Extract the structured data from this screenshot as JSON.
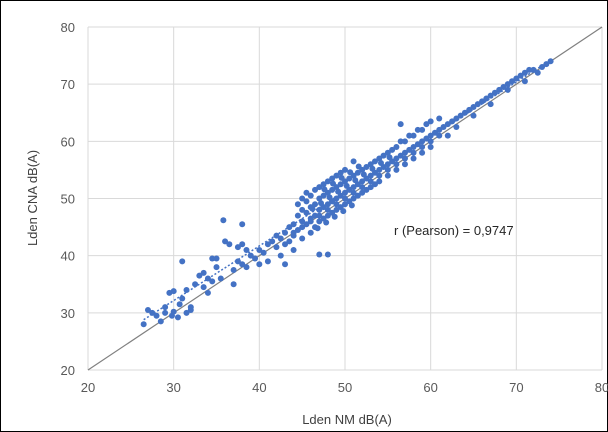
{
  "chart_data": {
    "type": "scatter",
    "xlabel": "Lden NM dB(A)",
    "ylabel": "Lden CNA dB(A)",
    "xlim": [
      20,
      80
    ],
    "ylim": [
      20,
      80
    ],
    "x_ticks": [
      "20",
      "30",
      "40",
      "50",
      "60",
      "70",
      "80"
    ],
    "y_ticks": [
      "20",
      "30",
      "40",
      "50",
      "60",
      "70",
      "80"
    ],
    "grid": true,
    "legend": "none",
    "annotation": "r (Pearson) = 0,9747",
    "identity_line": {
      "from": [
        20,
        20
      ],
      "to": [
        80,
        80
      ],
      "color": "#808080"
    },
    "trend_line": {
      "from": [
        26.5,
        28.8
      ],
      "to": [
        74,
        74.2
      ],
      "style": "dotted",
      "color": "#4472C4"
    },
    "point_color": "#4472C4",
    "series": [
      {
        "points": [
          [
            26.5,
            28
          ],
          [
            27.0,
            30.5
          ],
          [
            27.5,
            30
          ],
          [
            28,
            29.5
          ],
          [
            28.5,
            28.5
          ],
          [
            29,
            30
          ],
          [
            29,
            31
          ],
          [
            29.5,
            33.5
          ],
          [
            29.8,
            29.5
          ],
          [
            30,
            30.2
          ],
          [
            30,
            33.8
          ],
          [
            30.5,
            29.2
          ],
          [
            30.7,
            31.5
          ],
          [
            31,
            32.5
          ],
          [
            31,
            39
          ],
          [
            31.5,
            30
          ],
          [
            31.5,
            34
          ],
          [
            32,
            31
          ],
          [
            32,
            30.5
          ],
          [
            32.5,
            35
          ],
          [
            33,
            36.5
          ],
          [
            33.5,
            34.5
          ],
          [
            33.5,
            37
          ],
          [
            34,
            36
          ],
          [
            34,
            33.5
          ],
          [
            34.5,
            35.5
          ],
          [
            34.5,
            39.5
          ],
          [
            35,
            38
          ],
          [
            35,
            39.5
          ],
          [
            35.5,
            36
          ],
          [
            35.8,
            46.2
          ],
          [
            36,
            42.5
          ],
          [
            36.5,
            42
          ],
          [
            37,
            37.5
          ],
          [
            37,
            35
          ],
          [
            37.5,
            41.5
          ],
          [
            37.5,
            39
          ],
          [
            38,
            42
          ],
          [
            38,
            38.5
          ],
          [
            38,
            45.5
          ],
          [
            38.5,
            41
          ],
          [
            38.5,
            38
          ],
          [
            39,
            40
          ],
          [
            39.5,
            39.5
          ],
          [
            40,
            41
          ],
          [
            40,
            38.5
          ],
          [
            40.5,
            40.5
          ],
          [
            41,
            42
          ],
          [
            41,
            39
          ],
          [
            41.5,
            42.5
          ],
          [
            42,
            41.5
          ],
          [
            42,
            43.5
          ],
          [
            42.5,
            43
          ],
          [
            42.5,
            40
          ],
          [
            43,
            44
          ],
          [
            43,
            42
          ],
          [
            43,
            38.5
          ],
          [
            43.5,
            45
          ],
          [
            43.5,
            42.5
          ],
          [
            44,
            43.5
          ],
          [
            44,
            45.5
          ],
          [
            44,
            41
          ],
          [
            44.5,
            44.5
          ],
          [
            44.5,
            47
          ],
          [
            44.5,
            49
          ],
          [
            45,
            46
          ],
          [
            45,
            48
          ],
          [
            45,
            43
          ],
          [
            45,
            50
          ],
          [
            45.5,
            45.5
          ],
          [
            45.5,
            47.5
          ],
          [
            45.5,
            49.5
          ],
          [
            45.5,
            51
          ],
          [
            46,
            46.5
          ],
          [
            46,
            48.5
          ],
          [
            46,
            50.5
          ],
          [
            46,
            44
          ],
          [
            46.5,
            47
          ],
          [
            46.5,
            49
          ],
          [
            46.5,
            51.5
          ],
          [
            46.5,
            45
          ],
          [
            47,
            48
          ],
          [
            47,
            50
          ],
          [
            47,
            52
          ],
          [
            47,
            46
          ],
          [
            47,
            40.2
          ],
          [
            47.5,
            48.5
          ],
          [
            47.5,
            50.5
          ],
          [
            47.5,
            52.5
          ],
          [
            47.5,
            46.5
          ],
          [
            48,
            49
          ],
          [
            48,
            51
          ],
          [
            48,
            53
          ],
          [
            48,
            47
          ],
          [
            48,
            40.2
          ],
          [
            48.5,
            49.5
          ],
          [
            48.5,
            51.5
          ],
          [
            48.5,
            47.5
          ],
          [
            48.5,
            53.5
          ],
          [
            49,
            50
          ],
          [
            49,
            52
          ],
          [
            49,
            48
          ],
          [
            49,
            54
          ],
          [
            49.5,
            50.5
          ],
          [
            49.5,
            52.5
          ],
          [
            49.5,
            48.5
          ],
          [
            49.5,
            54.5
          ],
          [
            50,
            51
          ],
          [
            50,
            53
          ],
          [
            50,
            49
          ],
          [
            50,
            55
          ],
          [
            50.5,
            51.5
          ],
          [
            50.5,
            53.5
          ],
          [
            50.5,
            49.5
          ],
          [
            51,
            52
          ],
          [
            51,
            54
          ],
          [
            51,
            50
          ],
          [
            51,
            56.5
          ],
          [
            51.5,
            52.5
          ],
          [
            51.5,
            54.5
          ],
          [
            51.5,
            50.5
          ],
          [
            52,
            53
          ],
          [
            52,
            55
          ],
          [
            52,
            51
          ],
          [
            52.5,
            53.5
          ],
          [
            52.5,
            55.5
          ],
          [
            52.5,
            51.5
          ],
          [
            53,
            54
          ],
          [
            53,
            56
          ],
          [
            53,
            52
          ],
          [
            53.5,
            54.5
          ],
          [
            53.5,
            56.5
          ],
          [
            53.5,
            52.5
          ],
          [
            54,
            55
          ],
          [
            54,
            57
          ],
          [
            54,
            53
          ],
          [
            54.5,
            55.5
          ],
          [
            54.5,
            57.5
          ],
          [
            55,
            56
          ],
          [
            55,
            58
          ],
          [
            55,
            54
          ],
          [
            55.5,
            56.5
          ],
          [
            55.5,
            58.5
          ],
          [
            56,
            57
          ],
          [
            56,
            59
          ],
          [
            56,
            55
          ],
          [
            56.5,
            57.5
          ],
          [
            56.5,
            60
          ],
          [
            56.5,
            63
          ],
          [
            57,
            58
          ],
          [
            57,
            60
          ],
          [
            57,
            56
          ],
          [
            57.5,
            58.5
          ],
          [
            57.5,
            61
          ],
          [
            58,
            59
          ],
          [
            58,
            61
          ],
          [
            58,
            57
          ],
          [
            58.5,
            59.5
          ],
          [
            58.5,
            62
          ],
          [
            59,
            60
          ],
          [
            59,
            62
          ],
          [
            59,
            58
          ],
          [
            59.5,
            60.5
          ],
          [
            59.5,
            63
          ],
          [
            60,
            61
          ],
          [
            60,
            63.5
          ],
          [
            60,
            59
          ],
          [
            60.5,
            61.5
          ],
          [
            61,
            62
          ],
          [
            61,
            64
          ],
          [
            61.5,
            62.5
          ],
          [
            62,
            63
          ],
          [
            62,
            61
          ],
          [
            62.5,
            63.5
          ],
          [
            63,
            64
          ],
          [
            63,
            62.5
          ],
          [
            63.5,
            64.5
          ],
          [
            64,
            65
          ],
          [
            64.5,
            65.5
          ],
          [
            65,
            66
          ],
          [
            65,
            64.5
          ],
          [
            65.5,
            66.5
          ],
          [
            66,
            67
          ],
          [
            66.5,
            67.5
          ],
          [
            67,
            68
          ],
          [
            67,
            66.5
          ],
          [
            67.5,
            68.5
          ],
          [
            68,
            69
          ],
          [
            68.5,
            69.5
          ],
          [
            69,
            70
          ],
          [
            69,
            69
          ],
          [
            69.5,
            70.5
          ],
          [
            70,
            71
          ],
          [
            70.5,
            71.5
          ],
          [
            71,
            72
          ],
          [
            71,
            70.5
          ],
          [
            71.5,
            72.5
          ],
          [
            72,
            72.5
          ],
          [
            72.5,
            72
          ],
          [
            73,
            73
          ],
          [
            73.5,
            73.5
          ],
          [
            74,
            74
          ],
          [
            44,
            44
          ],
          [
            45,
            45
          ],
          [
            46,
            46
          ],
          [
            47,
            47
          ],
          [
            48,
            48
          ],
          [
            49,
            49
          ],
          [
            50,
            50
          ],
          [
            51,
            51
          ],
          [
            52,
            52
          ],
          [
            53,
            53
          ],
          [
            54,
            54
          ],
          [
            55,
            55
          ],
          [
            56,
            56
          ],
          [
            57,
            57
          ],
          [
            58,
            58
          ],
          [
            59,
            59
          ],
          [
            60,
            60
          ],
          [
            61,
            61
          ],
          [
            46.2,
            48.2
          ],
          [
            47.2,
            49.2
          ],
          [
            48.2,
            50.2
          ],
          [
            49.2,
            51.2
          ],
          [
            50.2,
            52.2
          ],
          [
            51.2,
            53.2
          ],
          [
            52.2,
            54.2
          ],
          [
            53.2,
            55.2
          ],
          [
            54.2,
            56.2
          ],
          [
            55.2,
            57.2
          ],
          [
            47.6,
            51.6
          ],
          [
            48.6,
            52.6
          ],
          [
            49.6,
            53.6
          ],
          [
            50.6,
            54.6
          ],
          [
            51.6,
            55.6
          ],
          [
            46.8,
            44.8
          ],
          [
            47.8,
            45.8
          ],
          [
            48.8,
            46.8
          ],
          [
            49.8,
            47.8
          ],
          [
            50.8,
            48.8
          ]
        ]
      }
    ]
  }
}
